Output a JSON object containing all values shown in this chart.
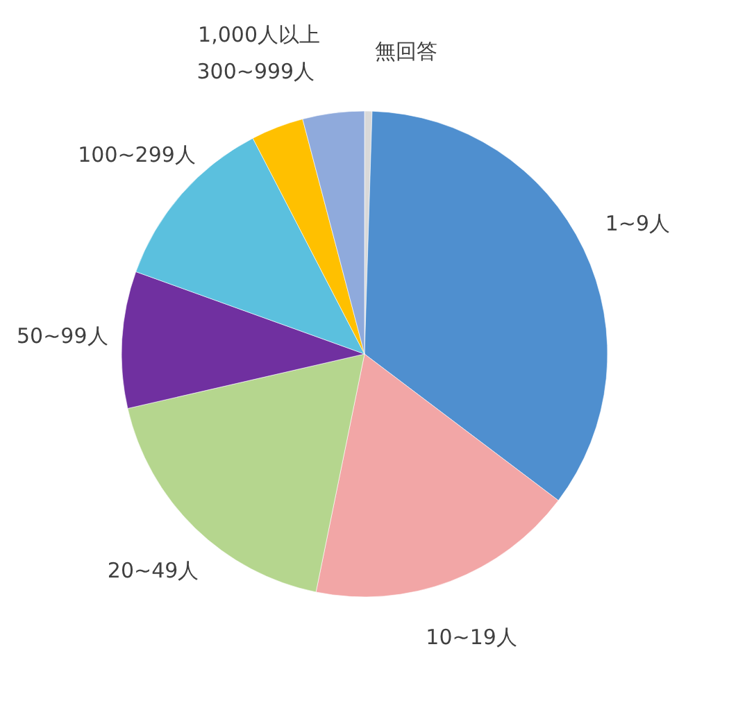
{
  "chart_data": {
    "type": "pie",
    "categories": [
      "無回答",
      "1~9人",
      "10~19人",
      "20~49人",
      "50~99人",
      "100~299人",
      "300~999人",
      "1,000人以上"
    ],
    "values": [
      0.5,
      34.8,
      17.9,
      18.2,
      9.1,
      11.9,
      3.5,
      4.1
    ],
    "colors": [
      "#d9d9d9",
      "#4f8fcf",
      "#f2a6a6",
      "#b5d68e",
      "#7030a0",
      "#5bc0de",
      "#ffc000",
      "#8faadc"
    ],
    "legend": false
  }
}
